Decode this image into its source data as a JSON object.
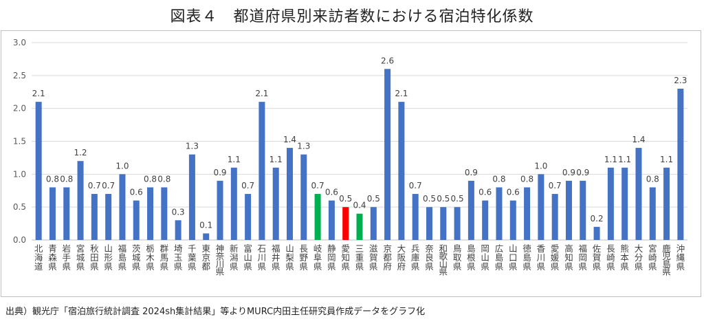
{
  "title": "図表４　都道府県別来訪者数における宿泊特化係数",
  "source_note": "出典）観光庁「宿泊旅行統計調査 2024sh集計結果」等よりMURC内田主任研究員作成データをグラフ化",
  "colors": {
    "default": "#4472c4",
    "highlight_green": "#00b050",
    "highlight_red": "#ff0000",
    "grid": "#d9d9d9"
  },
  "chart_data": {
    "type": "bar",
    "title": "図表４　都道府県別来訪者数における宿泊特化係数",
    "xlabel": "",
    "ylabel": "",
    "ylim": [
      0,
      3.0
    ],
    "yticks": [
      "0.0",
      "0.5",
      "1.0",
      "1.5",
      "2.0",
      "2.5",
      "3.0"
    ],
    "grid": true,
    "categories": [
      "北海道",
      "青森県",
      "岩手県",
      "宮城県",
      "秋田県",
      "山形県",
      "福島県",
      "茨城県",
      "栃木県",
      "群馬県",
      "埼玉県",
      "千葉県",
      "東京都",
      "神奈川県",
      "新潟県",
      "富山県",
      "石川県",
      "福井県",
      "山梨県",
      "長野県",
      "岐阜県",
      "静岡県",
      "愛知県",
      "三重県",
      "滋賀県",
      "京都府",
      "大阪府",
      "兵庫県",
      "奈良県",
      "和歌山県",
      "鳥取県",
      "島根県",
      "岡山県",
      "広島県",
      "山口県",
      "徳島県",
      "香川県",
      "愛媛県",
      "高知県",
      "福岡県",
      "佐賀県",
      "長崎県",
      "熊本県",
      "大分県",
      "宮崎県",
      "鹿児島県",
      "沖縄県"
    ],
    "values": [
      2.1,
      0.8,
      0.8,
      1.2,
      0.7,
      0.7,
      1.0,
      0.6,
      0.8,
      0.8,
      0.3,
      1.3,
      0.1,
      0.9,
      1.1,
      0.7,
      2.1,
      1.1,
      1.4,
      1.3,
      0.7,
      0.6,
      0.5,
      0.4,
      0.5,
      2.6,
      2.1,
      0.7,
      0.5,
      0.5,
      0.5,
      0.9,
      0.6,
      0.8,
      0.6,
      0.8,
      1.0,
      0.7,
      0.9,
      0.9,
      0.2,
      1.1,
      1.1,
      1.4,
      0.8,
      1.1,
      2.3
    ],
    "data_labels": [
      "2.1",
      "0.8",
      "0.8",
      "1.2",
      "0.7",
      "0.7",
      "1.0",
      "0.6",
      "0.8",
      "0.8",
      "0.3",
      "1.3",
      "0.1",
      "0.9",
      "1.1",
      "0.7",
      "2.1",
      "1.1",
      "1.4",
      "1.3",
      "0.7",
      "0.6",
      "0.5",
      "0.4",
      "0.5",
      "2.6",
      "2.1",
      "0.7",
      "0.5",
      "0.5",
      "0.5",
      "0.9",
      "0.6",
      "0.8",
      "0.6",
      "0.8",
      "1.0",
      "0.7",
      "0.9",
      "0.9",
      "0.2",
      "1.1",
      "1.1",
      "1.4",
      "0.8",
      "1.1",
      "2.3"
    ],
    "highlight": {
      "岐阜県": "green",
      "愛知県": "red",
      "三重県": "green"
    }
  }
}
